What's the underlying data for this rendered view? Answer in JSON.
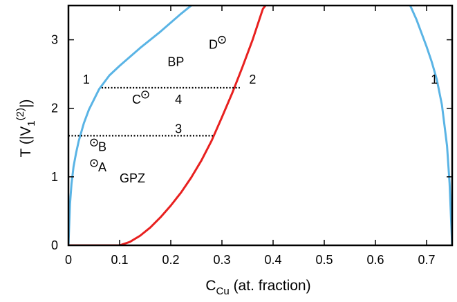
{
  "chart_data": {
    "type": "line",
    "xlim": [
      0,
      0.75
    ],
    "ylim": [
      0,
      3.5
    ],
    "x_ticks": [
      0,
      0.1,
      0.2,
      0.3,
      0.4,
      0.5,
      0.6,
      0.7
    ],
    "x_tick_labels": [
      "0",
      "0.1",
      "0.2",
      "0.3",
      "0.4",
      "0.5",
      "0.6",
      "0.7"
    ],
    "y_ticks": [
      0,
      1,
      2,
      3
    ],
    "y_tick_labels": [
      "0",
      "1",
      "2",
      "3"
    ],
    "xlabel": {
      "main": "C",
      "sub": "Cu",
      "rest": " (at. fraction)"
    },
    "ylabel": {
      "main": "T (|V",
      "sub": "1",
      "sup": "(2)",
      "rest": "|)"
    },
    "grid": false,
    "series": [
      {
        "color": "#5ab4e5",
        "points": [
          [
            0.0,
            0.0
          ],
          [
            0.003,
            0.6
          ],
          [
            0.006,
            0.9
          ],
          [
            0.01,
            1.15
          ],
          [
            0.015,
            1.35
          ],
          [
            0.02,
            1.52
          ],
          [
            0.03,
            1.78
          ],
          [
            0.04,
            1.98
          ],
          [
            0.05,
            2.13
          ],
          [
            0.06,
            2.28
          ],
          [
            0.08,
            2.48
          ],
          [
            0.1,
            2.62
          ],
          [
            0.12,
            2.75
          ],
          [
            0.14,
            2.88
          ],
          [
            0.16,
            3.0
          ],
          [
            0.18,
            3.12
          ],
          [
            0.2,
            3.25
          ],
          [
            0.22,
            3.38
          ],
          [
            0.24,
            3.5
          ]
        ]
      },
      {
        "color": "#5ab4e5",
        "points": [
          [
            0.668,
            3.5
          ],
          [
            0.68,
            3.3
          ],
          [
            0.69,
            3.1
          ],
          [
            0.7,
            2.9
          ],
          [
            0.71,
            2.68
          ],
          [
            0.72,
            2.42
          ],
          [
            0.73,
            2.05
          ],
          [
            0.74,
            1.45
          ],
          [
            0.745,
            0.9
          ],
          [
            0.75,
            0.0
          ]
        ]
      },
      {
        "color": "#e8201f",
        "points": [
          [
            0.0,
            0.0
          ],
          [
            0.1,
            0.0
          ],
          [
            0.12,
            0.05
          ],
          [
            0.14,
            0.14
          ],
          [
            0.16,
            0.26
          ],
          [
            0.18,
            0.41
          ],
          [
            0.2,
            0.58
          ],
          [
            0.22,
            0.77
          ],
          [
            0.24,
            0.99
          ],
          [
            0.26,
            1.24
          ],
          [
            0.28,
            1.53
          ],
          [
            0.3,
            1.87
          ],
          [
            0.32,
            2.22
          ],
          [
            0.34,
            2.6
          ],
          [
            0.36,
            3.0
          ],
          [
            0.38,
            3.45
          ],
          [
            0.385,
            3.5
          ]
        ]
      }
    ],
    "tie_lines": [
      {
        "x": [
          0.0,
          0.285
        ],
        "y": 1.6
      },
      {
        "x": [
          0.065,
          0.335
        ],
        "y": 2.3
      }
    ],
    "points": [
      {
        "label": "A",
        "x": 0.05,
        "y": 1.2
      },
      {
        "label": "B",
        "x": 0.05,
        "y": 1.5
      },
      {
        "label": "C",
        "x": 0.15,
        "y": 2.2
      },
      {
        "label": "D",
        "x": 0.3,
        "y": 3.0
      }
    ],
    "annotations": [
      {
        "text": "1",
        "x": 0.035,
        "y": 2.42
      },
      {
        "text": "2",
        "x": 0.36,
        "y": 2.42
      },
      {
        "text": "1",
        "x": 0.715,
        "y": 2.42
      },
      {
        "text": "3",
        "x": 0.215,
        "y": 1.7
      },
      {
        "text": "4",
        "x": 0.215,
        "y": 2.13
      },
      {
        "text": "BP",
        "x": 0.21,
        "y": 2.68
      },
      {
        "text": "GPZ",
        "x": 0.125,
        "y": 0.98
      }
    ]
  }
}
